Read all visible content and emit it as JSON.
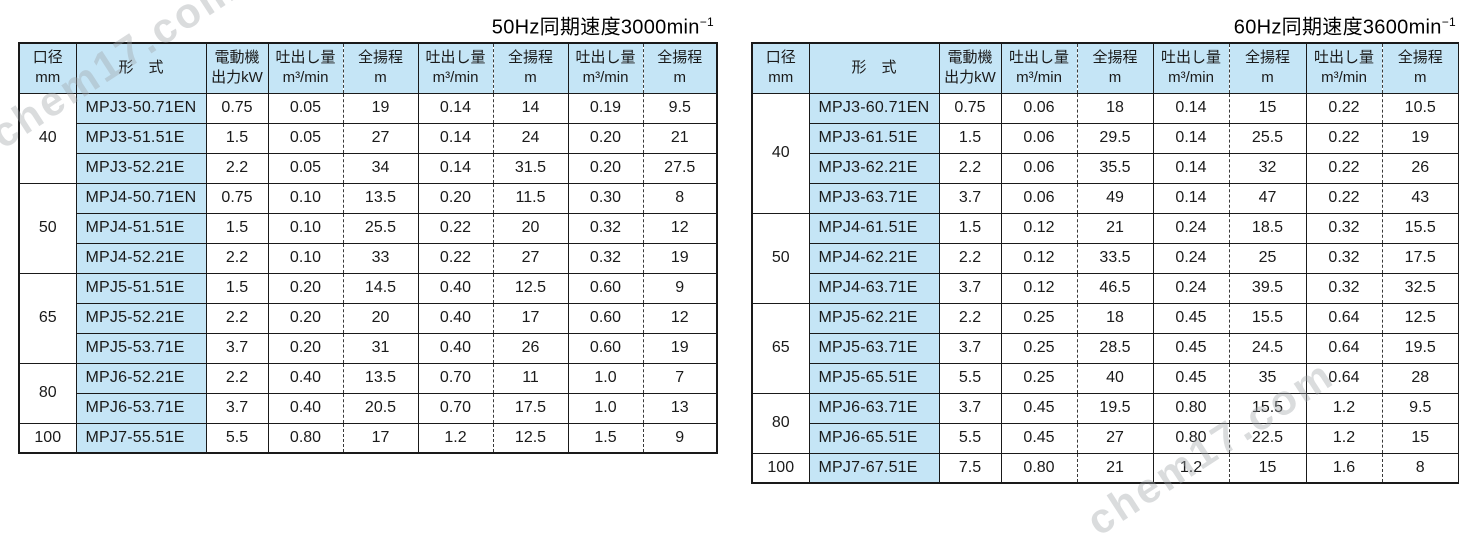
{
  "page": {
    "watermark": "chem17.com",
    "colors": {
      "cell_blue": "#c5e5f6",
      "border": "#1a1a1a",
      "watermark_gray": "#9fa4a8"
    }
  },
  "tables": [
    {
      "title": {
        "text": "50Hz同期速度3000min",
        "sup": "−1"
      },
      "headers": {
        "diameter": [
          "口径",
          "mm"
        ],
        "model": "形　式",
        "motor": [
          "電動機",
          "出力kW"
        ],
        "discharge": [
          "吐出し量",
          "m³/min"
        ],
        "head": [
          "全揚程",
          "m"
        ]
      },
      "groups": [
        {
          "diameter": "40",
          "rows": [
            {
              "model": "MPJ3-50.71EN",
              "kw": "0.75",
              "vals": [
                "0.05",
                "19",
                "0.14",
                "14",
                "0.19",
                "9.5"
              ]
            },
            {
              "model": "MPJ3-51.51E",
              "kw": "1.5",
              "vals": [
                "0.05",
                "27",
                "0.14",
                "24",
                "0.20",
                "21"
              ]
            },
            {
              "model": "MPJ3-52.21E",
              "kw": "2.2",
              "vals": [
                "0.05",
                "34",
                "0.14",
                "31.5",
                "0.20",
                "27.5"
              ]
            }
          ]
        },
        {
          "diameter": "50",
          "rows": [
            {
              "model": "MPJ4-50.71EN",
              "kw": "0.75",
              "vals": [
                "0.10",
                "13.5",
                "0.20",
                "11.5",
                "0.30",
                "8"
              ]
            },
            {
              "model": "MPJ4-51.51E",
              "kw": "1.5",
              "vals": [
                "0.10",
                "25.5",
                "0.22",
                "20",
                "0.32",
                "12"
              ]
            },
            {
              "model": "MPJ4-52.21E",
              "kw": "2.2",
              "vals": [
                "0.10",
                "33",
                "0.22",
                "27",
                "0.32",
                "19"
              ]
            }
          ]
        },
        {
          "diameter": "65",
          "rows": [
            {
              "model": "MPJ5-51.51E",
              "kw": "1.5",
              "vals": [
                "0.20",
                "14.5",
                "0.40",
                "12.5",
                "0.60",
                "9"
              ]
            },
            {
              "model": "MPJ5-52.21E",
              "kw": "2.2",
              "vals": [
                "0.20",
                "20",
                "0.40",
                "17",
                "0.60",
                "12"
              ]
            },
            {
              "model": "MPJ5-53.71E",
              "kw": "3.7",
              "vals": [
                "0.20",
                "31",
                "0.40",
                "26",
                "0.60",
                "19"
              ]
            }
          ]
        },
        {
          "diameter": "80",
          "rows": [
            {
              "model": "MPJ6-52.21E",
              "kw": "2.2",
              "vals": [
                "0.40",
                "13.5",
                "0.70",
                "11",
                "1.0",
                "7"
              ]
            },
            {
              "model": "MPJ6-53.71E",
              "kw": "3.7",
              "vals": [
                "0.40",
                "20.5",
                "0.70",
                "17.5",
                "1.0",
                "13"
              ]
            }
          ]
        },
        {
          "diameter": "100",
          "rows": [
            {
              "model": "MPJ7-55.51E",
              "kw": "5.5",
              "vals": [
                "0.80",
                "17",
                "1.2",
                "12.5",
                "1.5",
                "9"
              ]
            }
          ]
        }
      ]
    },
    {
      "title": {
        "text": "60Hz同期速度3600min",
        "sup": "−1"
      },
      "headers": {
        "diameter": [
          "口径",
          "mm"
        ],
        "model": "形　式",
        "motor": [
          "電動機",
          "出力kW"
        ],
        "discharge": [
          "吐出し量",
          "m³/min"
        ],
        "head": [
          "全揚程",
          "m"
        ]
      },
      "groups": [
        {
          "diameter": "40",
          "rows": [
            {
              "model": "MPJ3-60.71EN",
              "kw": "0.75",
              "vals": [
                "0.06",
                "18",
                "0.14",
                "15",
                "0.22",
                "10.5"
              ]
            },
            {
              "model": "MPJ3-61.51E",
              "kw": "1.5",
              "vals": [
                "0.06",
                "29.5",
                "0.14",
                "25.5",
                "0.22",
                "19"
              ]
            },
            {
              "model": "MPJ3-62.21E",
              "kw": "2.2",
              "vals": [
                "0.06",
                "35.5",
                "0.14",
                "32",
                "0.22",
                "26"
              ]
            },
            {
              "model": "MPJ3-63.71E",
              "kw": "3.7",
              "vals": [
                "0.06",
                "49",
                "0.14",
                "47",
                "0.22",
                "43"
              ]
            }
          ]
        },
        {
          "diameter": "50",
          "rows": [
            {
              "model": "MPJ4-61.51E",
              "kw": "1.5",
              "vals": [
                "0.12",
                "21",
                "0.24",
                "18.5",
                "0.32",
                "15.5"
              ]
            },
            {
              "model": "MPJ4-62.21E",
              "kw": "2.2",
              "vals": [
                "0.12",
                "33.5",
                "0.24",
                "25",
                "0.32",
                "17.5"
              ]
            },
            {
              "model": "MPJ4-63.71E",
              "kw": "3.7",
              "vals": [
                "0.12",
                "46.5",
                "0.24",
                "39.5",
                "0.32",
                "32.5"
              ]
            }
          ]
        },
        {
          "diameter": "65",
          "rows": [
            {
              "model": "MPJ5-62.21E",
              "kw": "2.2",
              "vals": [
                "0.25",
                "18",
                "0.45",
                "15.5",
                "0.64",
                "12.5"
              ]
            },
            {
              "model": "MPJ5-63.71E",
              "kw": "3.7",
              "vals": [
                "0.25",
                "28.5",
                "0.45",
                "24.5",
                "0.64",
                "19.5"
              ]
            },
            {
              "model": "MPJ5-65.51E",
              "kw": "5.5",
              "vals": [
                "0.25",
                "40",
                "0.45",
                "35",
                "0.64",
                "28"
              ]
            }
          ]
        },
        {
          "diameter": "80",
          "rows": [
            {
              "model": "MPJ6-63.71E",
              "kw": "3.7",
              "vals": [
                "0.45",
                "19.5",
                "0.80",
                "15.5",
                "1.2",
                "9.5"
              ]
            },
            {
              "model": "MPJ6-65.51E",
              "kw": "5.5",
              "vals": [
                "0.45",
                "27",
                "0.80",
                "22.5",
                "1.2",
                "15"
              ]
            }
          ]
        },
        {
          "diameter": "100",
          "rows": [
            {
              "model": "MPJ7-67.51E",
              "kw": "7.5",
              "vals": [
                "0.80",
                "21",
                "1.2",
                "15",
                "1.6",
                "8"
              ]
            }
          ]
        }
      ]
    }
  ]
}
